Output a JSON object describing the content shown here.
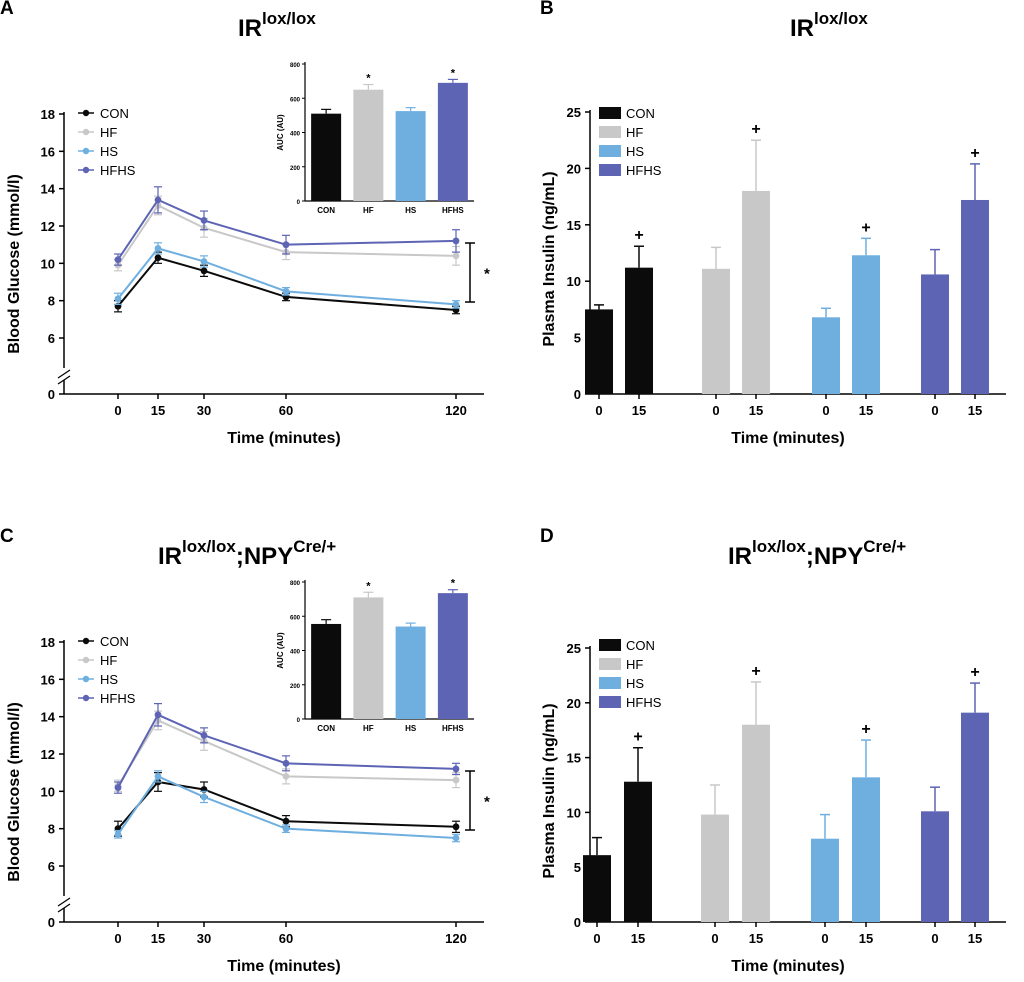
{
  "figure": {
    "panels": [
      {
        "letter": "A",
        "title_base": "IR",
        "title_sup": "lox/lox",
        "title_mid": "",
        "title_sup2": ""
      },
      {
        "letter": "B",
        "title_base": "IR",
        "title_sup": "lox/lox",
        "title_mid": "",
        "title_sup2": ""
      },
      {
        "letter": "C",
        "title_base": "IR",
        "title_sup": "lox/lox",
        "title_mid": ";NPY",
        "title_sup2": "Cre/+"
      },
      {
        "letter": "D",
        "title_base": "IR",
        "title_sup": "lox/lox",
        "title_mid": ";NPY",
        "title_sup2": "Cre/+"
      }
    ]
  },
  "colors": {
    "CON": "#0b0b0b",
    "HF": "#c8c8c8",
    "HS": "#6fafe0",
    "HFHS": "#5d64b4"
  },
  "chart_data": [
    {
      "panel": "A",
      "type": "line",
      "xlabel": "Time (minutes)",
      "ylabel": "Blood Glucose (mmol/l)",
      "x": [
        0,
        15,
        30,
        60,
        120
      ],
      "xticks": [
        "0",
        "15",
        "30",
        "60",
        "120"
      ],
      "yticks": [
        "0",
        "6",
        "8",
        "10",
        "12",
        "14",
        "16",
        "18"
      ],
      "ylim": [
        0,
        18
      ],
      "axis_break": true,
      "legend": [
        "CON",
        "HF",
        "HS",
        "HFHS"
      ],
      "series": [
        {
          "name": "CON",
          "values": [
            7.7,
            10.3,
            9.6,
            8.2,
            7.5
          ],
          "errors": [
            0.3,
            0.3,
            0.3,
            0.2,
            0.2
          ]
        },
        {
          "name": "HF",
          "values": [
            9.9,
            13.1,
            11.9,
            10.6,
            10.4
          ],
          "errors": [
            0.3,
            0.5,
            0.5,
            0.4,
            0.5
          ]
        },
        {
          "name": "HS",
          "values": [
            8.1,
            10.8,
            10.1,
            8.5,
            7.8
          ],
          "errors": [
            0.3,
            0.3,
            0.3,
            0.2,
            0.2
          ]
        },
        {
          "name": "HFHS",
          "values": [
            10.2,
            13.4,
            12.3,
            11.0,
            11.2
          ],
          "errors": [
            0.3,
            0.7,
            0.5,
            0.5,
            0.6
          ]
        }
      ],
      "bracket_label": "*",
      "inset": {
        "type": "bar",
        "ylabel": "AUC (AU)",
        "categories": [
          "CON",
          "HF",
          "HS",
          "HFHS"
        ],
        "values": [
          510,
          650,
          525,
          690
        ],
        "errors": [
          25,
          30,
          20,
          20
        ],
        "ylim": [
          0,
          800
        ],
        "yticks": [
          "0",
          "200",
          "400",
          "600",
          "800"
        ],
        "marks": [
          "",
          "*",
          "",
          "*"
        ]
      }
    },
    {
      "panel": "B",
      "type": "bar",
      "xlabel": "Time (minutes)",
      "ylabel": "Plasma Insulin (ng/mL)",
      "ylim": [
        0,
        25
      ],
      "yticks": [
        "0",
        "5",
        "10",
        "15",
        "20",
        "25"
      ],
      "groups": [
        "CON",
        "HF",
        "HS",
        "HFHS"
      ],
      "timepoints": [
        "0",
        "15"
      ],
      "values": [
        [
          7.5,
          11.2
        ],
        [
          11.1,
          18.0
        ],
        [
          6.8,
          12.3
        ],
        [
          10.6,
          17.2
        ]
      ],
      "errors": [
        [
          0.4,
          1.9
        ],
        [
          1.9,
          4.5
        ],
        [
          0.8,
          1.5
        ],
        [
          2.2,
          3.2
        ]
      ],
      "marks": [
        [
          "",
          "+"
        ],
        [
          "",
          "+"
        ],
        [
          "",
          "+"
        ],
        [
          "",
          "+"
        ]
      ],
      "legend": [
        "CON",
        "HF",
        "HS",
        "HFHS"
      ]
    },
    {
      "panel": "C",
      "type": "line",
      "xlabel": "Time (minutes)",
      "ylabel": "Blood Glucose (mmol/l)",
      "x": [
        0,
        15,
        30,
        60,
        120
      ],
      "xticks": [
        "0",
        "15",
        "30",
        "60",
        "120"
      ],
      "yticks": [
        "0",
        "6",
        "8",
        "10",
        "12",
        "14",
        "16",
        "18"
      ],
      "ylim": [
        0,
        18
      ],
      "axis_break": true,
      "legend": [
        "CON",
        "HF",
        "HS",
        "HFHS"
      ],
      "series": [
        {
          "name": "CON",
          "values": [
            8.0,
            10.5,
            10.1,
            8.4,
            8.1
          ],
          "errors": [
            0.4,
            0.5,
            0.4,
            0.3,
            0.3
          ]
        },
        {
          "name": "HF",
          "values": [
            10.3,
            13.8,
            12.7,
            10.8,
            10.6
          ],
          "errors": [
            0.3,
            0.5,
            0.5,
            0.4,
            0.4
          ]
        },
        {
          "name": "HS",
          "values": [
            7.7,
            10.8,
            9.7,
            8.0,
            7.5
          ],
          "errors": [
            0.2,
            0.3,
            0.3,
            0.2,
            0.2
          ]
        },
        {
          "name": "HFHS",
          "values": [
            10.2,
            14.1,
            13.0,
            11.5,
            11.2
          ],
          "errors": [
            0.3,
            0.6,
            0.4,
            0.4,
            0.3
          ]
        }
      ],
      "bracket_label": "*",
      "inset": {
        "type": "bar",
        "ylabel": "AUC (AU)",
        "categories": [
          "CON",
          "HF",
          "HS",
          "HFHS"
        ],
        "values": [
          555,
          710,
          540,
          735
        ],
        "errors": [
          25,
          30,
          20,
          20
        ],
        "ylim": [
          0,
          800
        ],
        "yticks": [
          "0",
          "200",
          "400",
          "600",
          "800"
        ],
        "marks": [
          "",
          "*",
          "",
          "*"
        ]
      }
    },
    {
      "panel": "D",
      "type": "bar",
      "xlabel": "Time (minutes)",
      "ylabel": "Plasma Insulin (ng/mL)",
      "ylim": [
        0,
        25
      ],
      "yticks": [
        "0",
        "5",
        "10",
        "15",
        "20",
        "25"
      ],
      "groups": [
        "CON",
        "HF",
        "HS",
        "HFHS"
      ],
      "timepoints": [
        "0",
        "15"
      ],
      "values": [
        [
          6.1,
          12.8
        ],
        [
          9.8,
          18.0
        ],
        [
          7.6,
          13.2
        ],
        [
          10.1,
          19.1
        ]
      ],
      "errors": [
        [
          1.6,
          3.1
        ],
        [
          2.7,
          3.9
        ],
        [
          2.2,
          3.4
        ],
        [
          2.2,
          2.7
        ]
      ],
      "marks": [
        [
          "",
          "+"
        ],
        [
          "",
          "+"
        ],
        [
          "",
          "+"
        ],
        [
          "",
          "+"
        ]
      ],
      "legend": [
        "CON",
        "HF",
        "HS",
        "HFHS"
      ]
    }
  ]
}
